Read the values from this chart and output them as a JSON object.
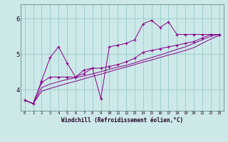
{
  "xlabel": "Windchill (Refroidissement éolien,°C)",
  "bg_color": "#cce8e8",
  "line_color": "#880088",
  "grid_color": "#99cccc",
  "x_ticks": [
    0,
    1,
    2,
    3,
    4,
    5,
    6,
    7,
    8,
    9,
    10,
    11,
    12,
    13,
    14,
    15,
    16,
    17,
    18,
    19,
    20,
    21,
    22,
    23
  ],
  "y_ticks": [
    4,
    5,
    6
  ],
  "ylim": [
    3.4,
    6.4
  ],
  "xlim": [
    -0.5,
    23.5
  ],
  "series": [
    [
      3.7,
      3.6,
      4.25,
      4.9,
      5.2,
      4.75,
      4.35,
      4.55,
      4.6,
      3.75,
      5.2,
      5.25,
      5.3,
      5.4,
      5.85,
      5.95,
      5.75,
      5.9,
      5.55,
      5.55,
      5.55,
      5.55,
      5.55,
      5.55
    ],
    [
      3.7,
      3.6,
      4.2,
      4.35,
      4.35,
      4.35,
      4.35,
      4.45,
      4.6,
      4.6,
      4.65,
      4.7,
      4.78,
      4.88,
      5.05,
      5.1,
      5.15,
      5.2,
      5.25,
      5.3,
      5.35,
      5.45,
      5.55,
      5.55
    ],
    [
      3.7,
      3.6,
      4.05,
      4.15,
      4.22,
      4.28,
      4.33,
      4.38,
      4.44,
      4.5,
      4.57,
      4.63,
      4.68,
      4.75,
      4.83,
      4.9,
      4.97,
      5.05,
      5.13,
      5.2,
      5.3,
      5.4,
      5.5,
      5.55
    ],
    [
      3.7,
      3.6,
      3.95,
      4.03,
      4.1,
      4.17,
      4.23,
      4.3,
      4.37,
      4.43,
      4.5,
      4.57,
      4.63,
      4.7,
      4.77,
      4.83,
      4.9,
      4.97,
      5.03,
      5.1,
      5.18,
      5.3,
      5.42,
      5.52
    ]
  ]
}
